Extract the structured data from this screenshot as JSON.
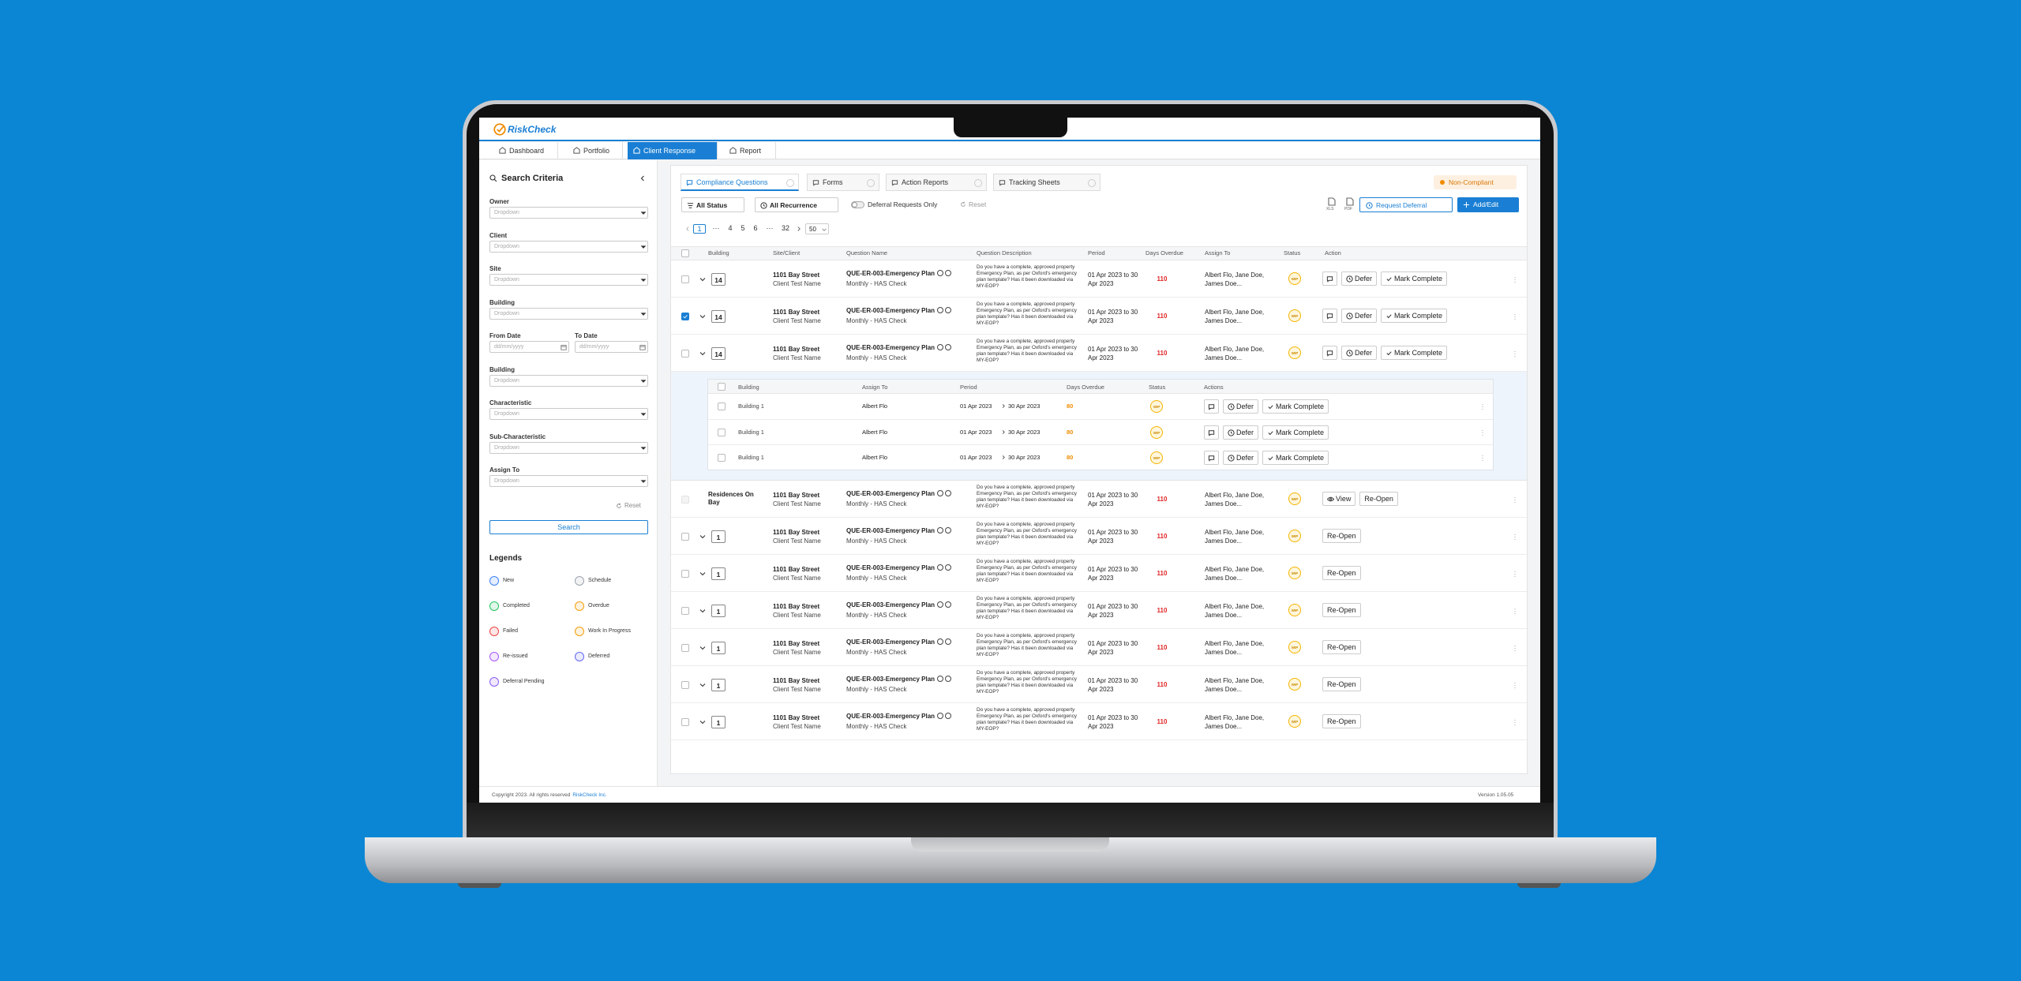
{
  "header": {
    "brand": "RiskCheck"
  },
  "nav": [
    {
      "label": "Dashboard",
      "active": false
    },
    {
      "label": "Portfolio",
      "active": false
    },
    {
      "label": "Client Response",
      "active": true
    },
    {
      "label": "Report",
      "active": false
    }
  ],
  "sidebar": {
    "title": "Search Criteria",
    "fields": [
      {
        "label": "Owner",
        "placeholder": "Dropdown"
      },
      {
        "label": "Client",
        "placeholder": "Dropdown"
      },
      {
        "label": "Site",
        "placeholder": "Dropdown"
      },
      {
        "label": "Building",
        "placeholder": "Dropdown"
      },
      {
        "dates": [
          {
            "label": "From Date",
            "placeholder": "dd/mm/yyyy"
          },
          {
            "label": "To Date",
            "placeholder": "dd/mm/yyyy"
          }
        ]
      },
      {
        "label": "Building",
        "placeholder": "Dropdown"
      },
      {
        "label": "Characteristic",
        "placeholder": "Dropdown"
      },
      {
        "label": "Sub-Characteristic",
        "placeholder": "Dropdown"
      },
      {
        "label": "Assign To",
        "placeholder": "Dropdown"
      }
    ],
    "reset": "Reset",
    "search": "Search",
    "legends_title": "Legends",
    "legends": [
      {
        "label": "New",
        "color": "#3b82f6"
      },
      {
        "label": "Schedule",
        "color": "#9ca3af"
      },
      {
        "label": "Completed",
        "color": "#22c55e"
      },
      {
        "label": "Overdue",
        "color": "#f59e0b"
      },
      {
        "label": "Failed",
        "color": "#ef4444"
      },
      {
        "label": "Work In Progress",
        "color": "#f59e0b"
      },
      {
        "label": "Re-issued",
        "color": "#a855f7"
      },
      {
        "label": "Deferred",
        "color": "#6366f1"
      },
      {
        "label": "Deferral Pending",
        "color": "#8b5cf6"
      }
    ]
  },
  "tabs": [
    {
      "label": "Compliance Questions",
      "active": true
    },
    {
      "label": "Forms",
      "active": false
    },
    {
      "label": "Action Reports",
      "active": false
    },
    {
      "label": "Tracking Sheets",
      "active": false
    }
  ],
  "compliance_badge": "Non-Compliant",
  "filters": {
    "status": "All Status",
    "recurrence": "All Recurrence",
    "deferral_toggle": "Deferral Requests Only",
    "reset": "Reset"
  },
  "exports": [
    "XLS",
    "PDF"
  ],
  "buttons": {
    "request_deferral": "Request Deferral",
    "add_edit": "Add/Edit"
  },
  "pagination": {
    "items": [
      "1",
      "···",
      "4",
      "5",
      "6",
      "···",
      "32"
    ],
    "current": "1",
    "page_size": "50"
  },
  "table": {
    "columns": [
      "Building",
      "Site/Client",
      "Question Name",
      "Question Description",
      "Period",
      "Days Overdue",
      "Assign To",
      "Status",
      "Action"
    ],
    "rows": [
      {
        "checked": false,
        "building": "14",
        "expandable": true,
        "site": "1101 Bay Street",
        "client": "Client Test Name",
        "question": "QUE-ER-003-Emergency Plan",
        "recurrence": "Monthly - HAS Check",
        "description": "Do you have a complete, approved property Emergency Plan, as per Oxford's emergency plan template? Has it been downloaded via MY-EOP?",
        "period": "01 Apr 2023 to 30 Apr 2023",
        "days_overdue": 110,
        "assign_to": "Albert Flo, Jane Doe, James Doe...",
        "status": "WIP",
        "comment": true,
        "actions": [
          "Defer",
          "Mark Complete"
        ]
      },
      {
        "checked": true,
        "building": "14",
        "expandable": true,
        "site": "1101 Bay Street",
        "client": "Client Test Name",
        "question": "QUE-ER-003-Emergency Plan",
        "recurrence": "Monthly - HAS Check",
        "description": "Do you have a complete, approved property Emergency Plan, as per Oxford's emergency plan template? Has it been downloaded via MY-EOP?",
        "period": "01 Apr 2023 to 30 Apr 2023",
        "days_overdue": 110,
        "assign_to": "Albert Flo, Jane Doe, James Doe...",
        "status": "WIP",
        "comment": true,
        "actions": [
          "Defer",
          "Mark Complete"
        ]
      },
      {
        "checked": false,
        "building": "14",
        "expandable": true,
        "site": "1101 Bay Street",
        "client": "Client Test Name",
        "question": "QUE-ER-003-Emergency Plan",
        "recurrence": "Monthly - HAS Check",
        "description": "Do you have a complete, approved property Emergency Plan, as per Oxford's emergency plan template? Has it been downloaded via MY-EOP?",
        "period": "01 Apr 2023 to 30 Apr 2023",
        "days_overdue": 110,
        "assign_to": "Albert Flo, Jane Doe, James Doe...",
        "status": "WIP",
        "comment": true,
        "actions": [
          "Defer",
          "Mark Complete"
        ],
        "children": {
          "columns": [
            "Building",
            "Assign To",
            "Period",
            "Days Overdue",
            "Status",
            "Actions"
          ],
          "rows": [
            {
              "building": "Building 1",
              "assign_to": "Albert Flo",
              "from": "01 Apr 2023",
              "to": "30 Apr 2023",
              "days_overdue": 80,
              "status": "WIP",
              "actions": [
                "Defer",
                "Mark Complete"
              ]
            },
            {
              "building": "Building 1",
              "assign_to": "Albert Flo",
              "from": "01 Apr 2023",
              "to": "30 Apr 2023",
              "days_overdue": 80,
              "status": "WIP",
              "actions": [
                "Defer",
                "Mark Complete"
              ]
            },
            {
              "building": "Building 1",
              "assign_to": "Albert Flo",
              "from": "01 Apr 2023",
              "to": "30 Apr 2023",
              "days_overdue": 80,
              "status": "WIP",
              "actions": [
                "Defer",
                "Mark Complete"
              ]
            }
          ]
        }
      },
      {
        "checked": false,
        "checkbox_disabled": true,
        "building": "Residences On Bay",
        "expandable": false,
        "site": "1101 Bay Street",
        "client": "Client Test Name",
        "question": "QUE-ER-003-Emergency Plan",
        "recurrence": "Monthly - HAS Check",
        "description": "Do you have a complete, approved property Emergency Plan, as per Oxford's emergency plan template? Has it been downloaded via MY-EOP?",
        "period": "01 Apr 2023 to 30 Apr 2023",
        "days_overdue": 110,
        "assign_to": "Albert Flo, Jane Doe, James Doe...",
        "status": "WIP",
        "comment": false,
        "actions": [
          "View",
          "Re-Open"
        ]
      },
      {
        "checked": false,
        "building": "1",
        "expandable": true,
        "site": "1101 Bay Street",
        "client": "Client Test Name",
        "question": "QUE-ER-003-Emergency Plan",
        "recurrence": "Monthly - HAS Check",
        "description": "Do you have a complete, approved property Emergency Plan, as per Oxford's emergency plan template? Has it been downloaded via MY-EOP?",
        "period": "01 Apr 2023 to 30 Apr 2023",
        "days_overdue": 110,
        "assign_to": "Albert Flo, Jane Doe, James Doe...",
        "status": "WIP",
        "comment": false,
        "actions": [
          "Re-Open"
        ]
      },
      {
        "checked": false,
        "building": "1",
        "expandable": true,
        "site": "1101 Bay Street",
        "client": "Client Test Name",
        "question": "QUE-ER-003-Emergency Plan",
        "recurrence": "Monthly - HAS Check",
        "description": "Do you have a complete, approved property Emergency Plan, as per Oxford's emergency plan template? Has it been downloaded via MY-EOP?",
        "period": "01 Apr 2023 to 30 Apr 2023",
        "days_overdue": 110,
        "assign_to": "Albert Flo, Jane Doe, James Doe...",
        "status": "WIP",
        "comment": false,
        "actions": [
          "Re-Open"
        ]
      },
      {
        "checked": false,
        "building": "1",
        "expandable": true,
        "site": "1101 Bay Street",
        "client": "Client Test Name",
        "question": "QUE-ER-003-Emergency Plan",
        "recurrence": "Monthly - HAS Check",
        "description": "Do you have a complete, approved property Emergency Plan, as per Oxford's emergency plan template? Has it been downloaded via MY-EOP?",
        "period": "01 Apr 2023 to 30 Apr 2023",
        "days_overdue": 110,
        "assign_to": "Albert Flo, Jane Doe, James Doe...",
        "status": "WIP",
        "comment": false,
        "actions": [
          "Re-Open"
        ]
      },
      {
        "checked": false,
        "building": "1",
        "expandable": true,
        "site": "1101 Bay Street",
        "client": "Client Test Name",
        "question": "QUE-ER-003-Emergency Plan",
        "recurrence": "Monthly - HAS Check",
        "description": "Do you have a complete, approved property Emergency Plan, as per Oxford's emergency plan template? Has it been downloaded via MY-EOP?",
        "period": "01 Apr 2023 to 30 Apr 2023",
        "days_overdue": 110,
        "assign_to": "Albert Flo, Jane Doe, James Doe...",
        "status": "WIP",
        "comment": false,
        "actions": [
          "Re-Open"
        ]
      },
      {
        "checked": false,
        "building": "1",
        "expandable": true,
        "site": "1101 Bay Street",
        "client": "Client Test Name",
        "question": "QUE-ER-003-Emergency Plan",
        "recurrence": "Monthly - HAS Check",
        "description": "Do you have a complete, approved property Emergency Plan, as per Oxford's emergency plan template? Has it been downloaded via MY-EOP?",
        "period": "01 Apr 2023 to 30 Apr 2023",
        "days_overdue": 110,
        "assign_to": "Albert Flo, Jane Doe, James Doe...",
        "status": "WIP",
        "comment": false,
        "actions": [
          "Re-Open"
        ]
      },
      {
        "checked": false,
        "building": "1",
        "expandable": true,
        "site": "1101 Bay Street",
        "client": "Client Test Name",
        "question": "QUE-ER-003-Emergency Plan",
        "recurrence": "Monthly - HAS Check",
        "description": "Do you have a complete, approved property Emergency Plan, as per Oxford's emergency plan template? Has it been downloaded via MY-EOP?",
        "period": "01 Apr 2023 to 30 Apr 2023",
        "days_overdue": 110,
        "assign_to": "Albert Flo, Jane Doe, James Doe...",
        "status": "WIP",
        "comment": false,
        "actions": [
          "Re-Open"
        ]
      }
    ]
  },
  "footer": {
    "copyright": "Copyright 2023. All rights reserved",
    "company": "RiskCheck Inc.",
    "version": "Version 1.05.05"
  }
}
